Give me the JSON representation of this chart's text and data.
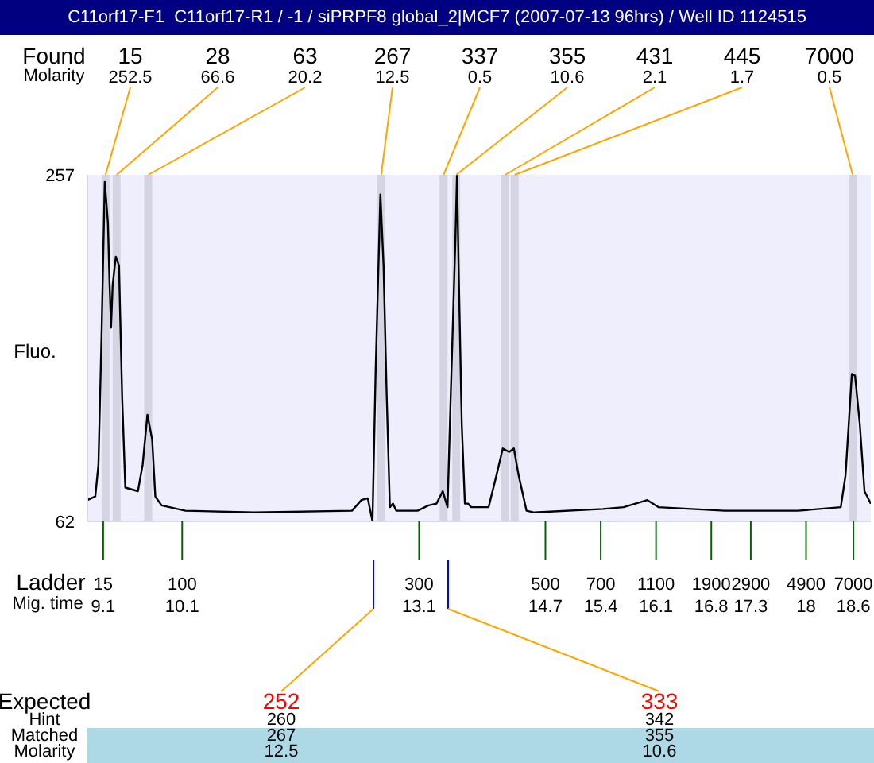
{
  "chart_data": {
    "type": "line",
    "title": "C11orf17-F1  C11orf17-R1 / -1 / siPRPF8 global_2|MCF7 (2007-07-13 96hrs) / Well ID 1124515",
    "ylabel": "Fluo.",
    "x": [
      8.9,
      9.0,
      9.04,
      9.08,
      9.12,
      9.16,
      9.18,
      9.2,
      9.22,
      9.26,
      9.3,
      9.34,
      9.38,
      9.54,
      9.6,
      9.66,
      9.72,
      9.76,
      9.84,
      10.14,
      11.01,
      12.25,
      12.37,
      12.45,
      12.51,
      12.55,
      12.61,
      12.65,
      12.69,
      12.73,
      12.77,
      12.81,
      13.08,
      13.22,
      13.32,
      13.4,
      13.46,
      13.5,
      13.56,
      13.58,
      13.6,
      13.64,
      13.68,
      13.72,
      13.76,
      13.98,
      14.08,
      14.16,
      14.24,
      14.3,
      14.36,
      14.46,
      14.56,
      15.43,
      15.69,
      15.99,
      16.13,
      16.97,
      17.9,
      18.44,
      18.5,
      18.58,
      18.62,
      18.68,
      18.74,
      18.82
    ],
    "series": [
      {
        "color": "#000000",
        "values": [
          74,
          76,
          94,
          168,
          253,
          230,
          197,
          171,
          195,
          211,
          206,
          132,
          81,
          79,
          94,
          122,
          108,
          76,
          71,
          68,
          67,
          68,
          74,
          75,
          62,
          147,
          246,
          206,
          132,
          70,
          72,
          68,
          68,
          71,
          72,
          79,
          70,
          132,
          221,
          257,
          206,
          117,
          72,
          72,
          70,
          70,
          88,
          103,
          101,
          103,
          88,
          68,
          67,
          69,
          70,
          74,
          70,
          68,
          68,
          70,
          88,
          145,
          144,
          117,
          79,
          72
        ]
      }
    ],
    "xlim": [
      8.9,
      18.82
    ],
    "xticks": [
      9.1,
      10.1,
      13.1,
      14.7,
      15.4,
      16.1,
      16.8,
      17.3,
      18,
      18.6
    ],
    "ylim": [
      62,
      257
    ],
    "yticks": [
      62,
      257
    ],
    "marker": "none",
    "line_style": "solid",
    "bands": [
      {
        "axis": "x",
        "from": 9.08,
        "to": 9.18,
        "label": "15",
        "color": "#d4d4e2"
      },
      {
        "axis": "x",
        "from": 9.22,
        "to": 9.32,
        "label": "28",
        "color": "#d4d4e2"
      },
      {
        "axis": "x",
        "from": 9.62,
        "to": 9.72,
        "label": "63",
        "color": "#d4d4e2"
      },
      {
        "axis": "x",
        "from": 12.57,
        "to": 12.67,
        "label": "267",
        "color": "#d4d4e2"
      },
      {
        "axis": "x",
        "from": 13.36,
        "to": 13.46,
        "label": "337",
        "color": "#d4d4e2"
      },
      {
        "axis": "x",
        "from": 13.52,
        "to": 13.62,
        "label": "355",
        "color": "#d4d4e2"
      },
      {
        "axis": "x",
        "from": 14.14,
        "to": 14.24,
        "label": "431",
        "color": "#d4d4e2"
      },
      {
        "axis": "x",
        "from": 14.26,
        "to": 14.36,
        "label": "445",
        "color": "#d4d4e2"
      },
      {
        "axis": "x",
        "from": 18.54,
        "to": 18.64,
        "label": "7000",
        "color": "#d4d4e2"
      }
    ],
    "annotations": [
      "Found",
      "Molarity",
      "Ladder",
      "Mig. time",
      "Expected",
      "Hint",
      "Matched",
      "Molarity",
      {
        "text": "252.5",
        "x": 9.13,
        "y": 257
      },
      {
        "text": "66.6",
        "x": 9.27,
        "y": 257
      },
      {
        "text": "20.2",
        "x": 9.67,
        "y": 257
      },
      {
        "text": "12.5",
        "x": 12.62,
        "y": 257
      },
      {
        "text": "0.5",
        "x": 13.41,
        "y": 257
      },
      {
        "text": "10.6",
        "x": 13.57,
        "y": 257
      },
      {
        "text": "2.1",
        "x": 14.19,
        "y": 257
      },
      {
        "text": "1.7",
        "x": 14.31,
        "y": 257
      },
      {
        "text": "0.5",
        "x": 18.59,
        "y": 257
      },
      "15",
      "100",
      "300",
      "500",
      "700",
      "1100",
      "1900",
      "2900",
      "4900",
      "7000",
      "252",
      "260",
      "267",
      "12.5",
      "333",
      "342",
      "355",
      "10.6"
    ]
  }
}
